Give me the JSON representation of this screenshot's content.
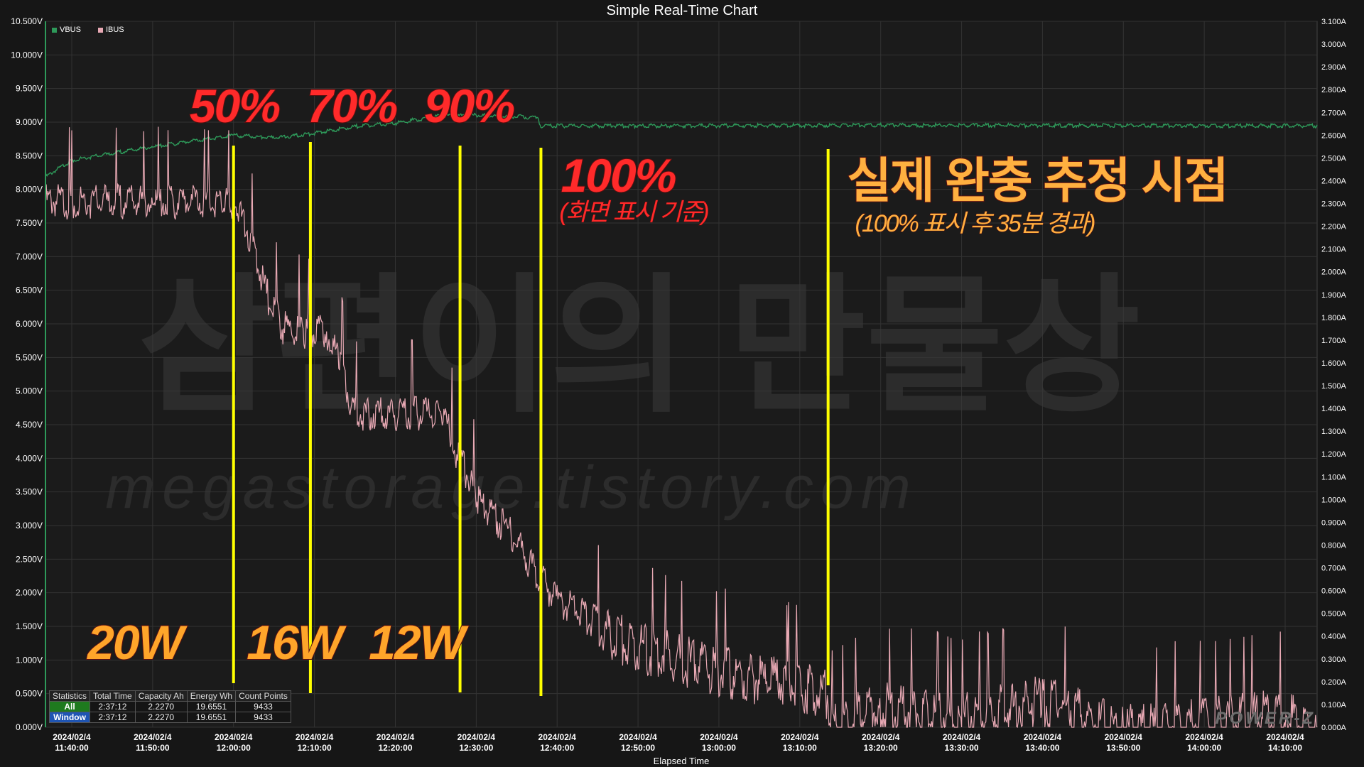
{
  "chart_data": {
    "type": "line",
    "title": "Simple Real-Time Chart",
    "xlabel": "Elapsed Time",
    "x_ticks": [
      [
        "2024/02/4",
        "11:40:00"
      ],
      [
        "2024/02/4",
        "11:50:00"
      ],
      [
        "2024/02/4",
        "12:00:00"
      ],
      [
        "2024/02/4",
        "12:10:00"
      ],
      [
        "2024/02/4",
        "12:20:00"
      ],
      [
        "2024/02/4",
        "12:30:00"
      ],
      [
        "2024/02/4",
        "12:40:00"
      ],
      [
        "2024/02/4",
        "12:50:00"
      ],
      [
        "2024/02/4",
        "13:00:00"
      ],
      [
        "2024/02/4",
        "13:10:00"
      ],
      [
        "2024/02/4",
        "13:20:00"
      ],
      [
        "2024/02/4",
        "13:30:00"
      ],
      [
        "2024/02/4",
        "13:40:00"
      ],
      [
        "2024/02/4",
        "13:50:00"
      ],
      [
        "2024/02/4",
        "14:00:00"
      ],
      [
        "2024/02/4",
        "14:10:00"
      ]
    ],
    "x_range": [
      "11:36:45",
      "14:13:57"
    ],
    "y_left": {
      "unit": "V",
      "range": [
        0,
        10.5
      ],
      "ticks": [
        "0.000V",
        "0.500V",
        "1.000V",
        "1.500V",
        "2.000V",
        "2.500V",
        "3.000V",
        "3.500V",
        "4.000V",
        "4.500V",
        "5.000V",
        "5.500V",
        "6.000V",
        "6.500V",
        "7.000V",
        "7.500V",
        "8.000V",
        "8.500V",
        "9.000V",
        "9.500V",
        "10.000V",
        "10.500V"
      ]
    },
    "y_right": {
      "unit": "A",
      "range": [
        0,
        3.1
      ],
      "ticks": [
        "0.000A",
        "0.100A",
        "0.200A",
        "0.300A",
        "0.400A",
        "0.500A",
        "0.600A",
        "0.700A",
        "0.800A",
        "0.900A",
        "1.000A",
        "1.100A",
        "1.200A",
        "1.300A",
        "1.400A",
        "1.500A",
        "1.600A",
        "1.700A",
        "1.800A",
        "1.900A",
        "2.000A",
        "2.100A",
        "2.200A",
        "2.300A",
        "2.400A",
        "2.500A",
        "2.600A",
        "2.700A",
        "2.800A",
        "2.900A",
        "3.000A",
        "3.100A"
      ]
    },
    "grid": true,
    "legend_position": "top-left",
    "series": [
      {
        "name": "VBUS",
        "color": "#2e9a5a",
        "axis": "left",
        "x": [
          "11:36:45",
          "11:40:00",
          "11:50:00",
          "12:00:00",
          "12:05:00",
          "12:10:00",
          "12:15:00",
          "12:20:00",
          "12:25:00",
          "12:30:00",
          "12:35:00",
          "12:37:30",
          "12:38:00",
          "12:50:00",
          "13:20:00",
          "14:13:57"
        ],
        "values": [
          8.2,
          8.45,
          8.65,
          8.82,
          8.78,
          8.85,
          8.95,
          9.0,
          9.1,
          9.12,
          9.1,
          9.08,
          8.96,
          8.96,
          8.97,
          8.96
        ]
      },
      {
        "name": "IBUS",
        "color": "#e8a9b4",
        "axis": "right",
        "x": [
          "11:36:45",
          "11:40:00",
          "11:50:00",
          "11:59:00",
          "12:00:00",
          "12:02:00",
          "12:04:00",
          "12:06:00",
          "12:09:00",
          "12:11:30",
          "12:13:00",
          "12:15:00",
          "12:20:00",
          "12:26:00",
          "12:27:00",
          "12:30:00",
          "12:34:00",
          "12:37:30",
          "12:40:00",
          "12:45:00",
          "12:50:00",
          "12:55:00",
          "13:00:00",
          "13:05:00",
          "13:10:00",
          "13:13:30",
          "13:14:00",
          "13:20:00",
          "13:30:00",
          "13:40:00",
          "13:50:00",
          "14:00:00",
          "14:10:00",
          "14:13:57"
        ],
        "values": [
          2.35,
          2.35,
          2.35,
          2.35,
          2.35,
          2.2,
          1.95,
          1.8,
          1.78,
          1.78,
          1.65,
          1.42,
          1.42,
          1.42,
          1.3,
          1.05,
          0.9,
          0.72,
          0.6,
          0.5,
          0.42,
          0.36,
          0.31,
          0.27,
          0.24,
          0.2,
          0.05,
          0.15,
          0.1,
          0.18,
          0.05,
          0.08,
          0.12,
          0.0
        ]
      }
    ],
    "markers": [
      {
        "time": "12:00:00",
        "color": "#ffff00"
      },
      {
        "time": "12:09:30",
        "color": "#ffff00"
      },
      {
        "time": "12:28:00",
        "color": "#ffff00"
      },
      {
        "time": "12:38:00",
        "color": "#ffff00"
      },
      {
        "time": "13:13:30",
        "color": "#ffff00"
      }
    ],
    "annotations": [
      {
        "text": "50%",
        "color": "#ff2a2a"
      },
      {
        "text": "70%",
        "color": "#ff2a2a"
      },
      {
        "text": "90%",
        "color": "#ff2a2a"
      },
      {
        "text": "100%",
        "color": "#ff2a2a"
      },
      {
        "text": "(화면 표시 기준)",
        "color": "#ff2a2a"
      },
      {
        "text": "실제 완충 추정 시점",
        "color": "#ffb040"
      },
      {
        "text": "(100% 표시 후 35분 경과)",
        "color": "#ffb040"
      },
      {
        "text": "20W",
        "color": "#ffa52a"
      },
      {
        "text": "16W",
        "color": "#ffa52a"
      },
      {
        "text": "12W",
        "color": "#ffa52a"
      }
    ],
    "watermark": [
      "삼편이의 만물상",
      "megastorage.tistory.com"
    ]
  },
  "stats": {
    "headers": [
      "Statistics",
      "Total Time",
      "Capacity Ah",
      "Energy Wh",
      "Count Points"
    ],
    "rows": [
      [
        "All",
        "2:37:12",
        "2.2270",
        "19.6551",
        "9433"
      ],
      [
        "Window",
        "2:37:12",
        "2.2270",
        "19.6551",
        "9433"
      ]
    ]
  },
  "logo": "POWER-Z"
}
